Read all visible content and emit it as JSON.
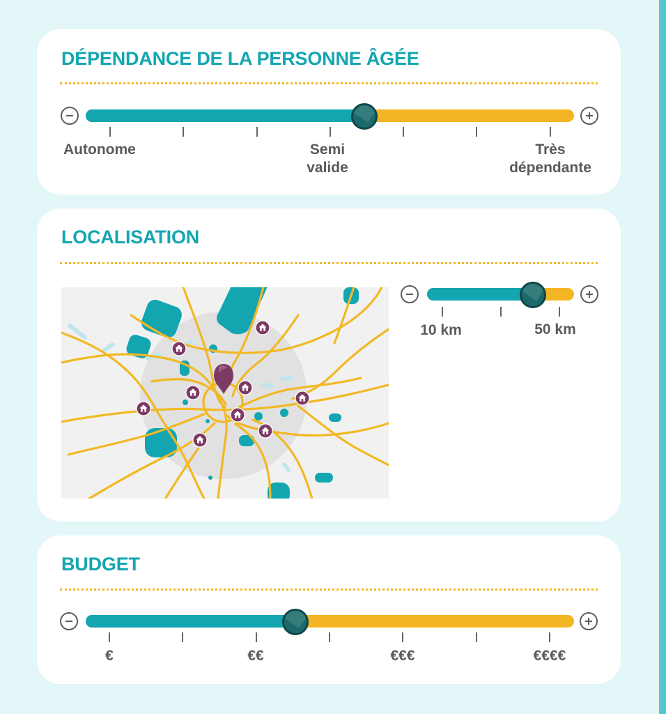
{
  "dependance": {
    "title": "DÉPENDANCE DE LA PERSONNE ÂGÉE",
    "value_fraction": 0.57,
    "labels": [
      {
        "line1": "Autonome",
        "line2": ""
      },
      {
        "line1": "Semi",
        "line2": "valide"
      },
      {
        "line1": "Très",
        "line2": "dépendante"
      }
    ]
  },
  "localisation": {
    "title": "LOCALISATION",
    "distance": {
      "value_fraction": 0.72,
      "min_label": "10 km",
      "max_label": "50 km"
    },
    "map": {
      "center_marker_icon": "location-pin-icon",
      "poi_icon": "house-icon"
    }
  },
  "budget": {
    "title": "BUDGET",
    "value_fraction": 0.43,
    "labels": [
      "€",
      "€€",
      "€€€",
      "€€€€"
    ]
  },
  "colors": {
    "teal": "#13a6b0",
    "yellow": "#f4b524",
    "handle": "#1a6a6c",
    "marker": "#7d3a65",
    "background": "#e3f6f8"
  }
}
